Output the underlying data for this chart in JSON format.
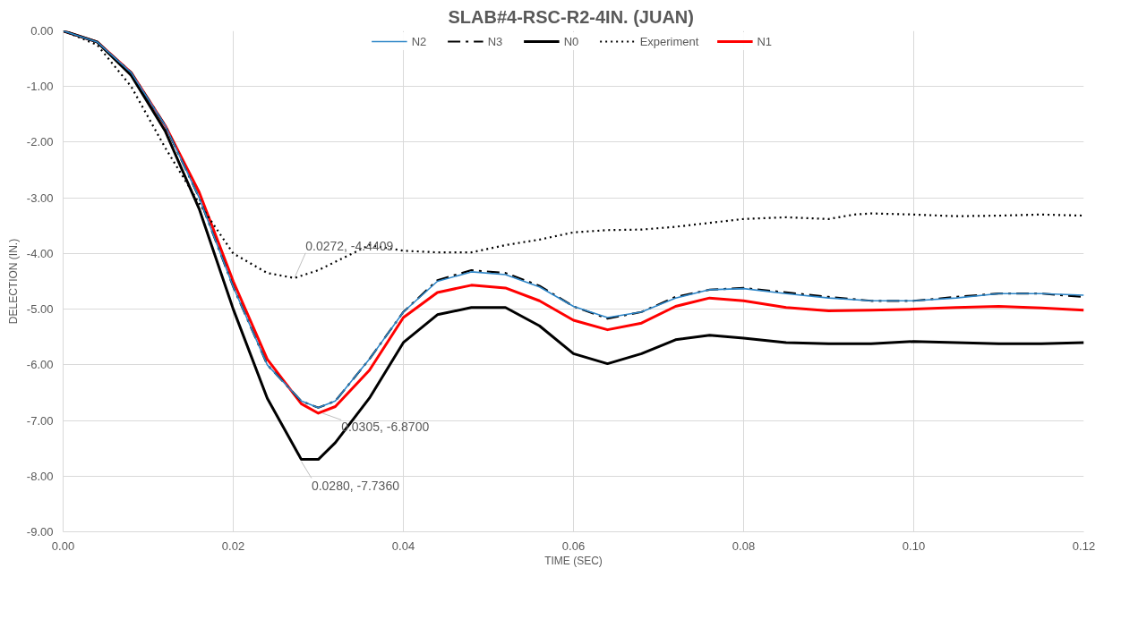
{
  "chart_data": {
    "type": "line",
    "title": "SLAB#4-RSC-R2-4IN.  (JUAN)",
    "xlabel": "TIME (SEC)",
    "ylabel": "DELECTION (IN.)",
    "x": [
      0,
      0.004,
      0.008,
      0.012,
      0.016,
      0.02,
      0.024,
      0.028,
      0.03,
      0.032,
      0.036,
      0.04,
      0.044,
      0.048,
      0.052,
      0.056,
      0.06,
      0.064,
      0.068,
      0.072,
      0.076,
      0.08,
      0.085,
      0.09,
      0.095,
      0.1,
      0.105,
      0.11,
      0.115,
      0.12
    ],
    "series": [
      {
        "name": "N2",
        "color": "#2e86c8",
        "line_style": "solid",
        "values": [
          0,
          -0.2,
          -0.75,
          -1.7,
          -3.0,
          -4.6,
          -6.0,
          -6.65,
          -6.77,
          -6.65,
          -5.9,
          -5.05,
          -4.5,
          -4.33,
          -4.38,
          -4.6,
          -4.95,
          -5.15,
          -5.05,
          -4.8,
          -4.65,
          -4.63,
          -4.72,
          -4.8,
          -4.85,
          -4.85,
          -4.8,
          -4.72,
          -4.72,
          -4.75
        ]
      },
      {
        "name": "N3",
        "color": "#000000",
        "line_style": "dashed",
        "values": [
          0,
          -0.2,
          -0.75,
          -1.7,
          -3.0,
          -4.6,
          -6.0,
          -6.65,
          -6.77,
          -6.65,
          -5.9,
          -5.05,
          -4.48,
          -4.3,
          -4.35,
          -4.58,
          -4.95,
          -5.17,
          -5.05,
          -4.78,
          -4.65,
          -4.62,
          -4.7,
          -4.78,
          -4.85,
          -4.85,
          -4.78,
          -4.72,
          -4.72,
          -4.78
        ]
      },
      {
        "name": "N0",
        "color": "#000000",
        "line_style": "solid",
        "values": [
          0,
          -0.2,
          -0.8,
          -1.8,
          -3.2,
          -5.0,
          -6.6,
          -7.7,
          -7.7,
          -7.4,
          -6.6,
          -5.6,
          -5.1,
          -4.97,
          -4.97,
          -5.3,
          -5.8,
          -5.98,
          -5.8,
          -5.55,
          -5.47,
          -5.52,
          -5.6,
          -5.62,
          -5.62,
          -5.58,
          -5.6,
          -5.62,
          -5.62,
          -5.6
        ]
      },
      {
        "name": "Experiment",
        "color": "#000000",
        "line_style": "dotted",
        "x": [
          0,
          0.004,
          0.008,
          0.012,
          0.016,
          0.02,
          0.024,
          0.0272,
          0.03,
          0.032,
          0.036,
          0.04,
          0.044,
          0.048,
          0.052,
          0.056,
          0.06,
          0.064,
          0.068,
          0.072,
          0.076,
          0.08,
          0.085,
          0.09,
          0.093,
          0.095,
          0.1,
          0.105,
          0.11,
          0.115,
          0.12
        ],
        "values": [
          0,
          -0.25,
          -1.0,
          -2.1,
          -3.1,
          -4.0,
          -4.35,
          -4.4409,
          -4.3,
          -4.15,
          -3.85,
          -3.95,
          -3.98,
          -3.98,
          -3.85,
          -3.75,
          -3.62,
          -3.58,
          -3.57,
          -3.52,
          -3.45,
          -3.38,
          -3.35,
          -3.38,
          -3.3,
          -3.28,
          -3.3,
          -3.33,
          -3.32,
          -3.3,
          -3.32
        ]
      },
      {
        "name": "N1",
        "color": "#ff0000",
        "line_style": "solid",
        "values": [
          0,
          -0.2,
          -0.75,
          -1.7,
          -2.9,
          -4.5,
          -5.9,
          -6.7,
          -6.87,
          -6.75,
          -6.1,
          -5.15,
          -4.7,
          -4.57,
          -4.62,
          -4.85,
          -5.2,
          -5.37,
          -5.25,
          -4.95,
          -4.8,
          -4.85,
          -4.97,
          -5.03,
          -5.02,
          -5.0,
          -4.97,
          -4.95,
          -4.98,
          -5.02
        ]
      }
    ],
    "annotations": [
      {
        "text": "0.0272, -4.4409",
        "x": 0.0272,
        "y": -4.4409
      },
      {
        "text": "0.0305, -6.8700",
        "x": 0.0305,
        "y": -6.87
      },
      {
        "text": "0.0280, -7.7360",
        "x": 0.028,
        "y": -7.736
      }
    ],
    "xlim": [
      0,
      0.12
    ],
    "xticks": [
      {
        "value": 0,
        "label": "0.00"
      },
      {
        "value": 0.02,
        "label": "0.02"
      },
      {
        "value": 0.04,
        "label": "0.04"
      },
      {
        "value": 0.06,
        "label": "0.06"
      },
      {
        "value": 0.08,
        "label": "0.08"
      },
      {
        "value": 0.1,
        "label": "0.10"
      },
      {
        "value": 0.12,
        "label": "0.12"
      }
    ],
    "ylim": [
      -9,
      0
    ],
    "yticks": [
      {
        "value": 0,
        "label": "0.00"
      },
      {
        "value": -1,
        "label": "-1.00"
      },
      {
        "value": -2,
        "label": "-2.00"
      },
      {
        "value": -3,
        "label": "-3.00"
      },
      {
        "value": -4,
        "label": "-4.00"
      },
      {
        "value": -5,
        "label": "-5.00"
      },
      {
        "value": -6,
        "label": "-6.00"
      },
      {
        "value": -7,
        "label": "-7.00"
      },
      {
        "value": -8,
        "label": "-8.00"
      },
      {
        "value": -9,
        "label": "-9.00"
      }
    ],
    "grid": true,
    "legend": "top"
  }
}
